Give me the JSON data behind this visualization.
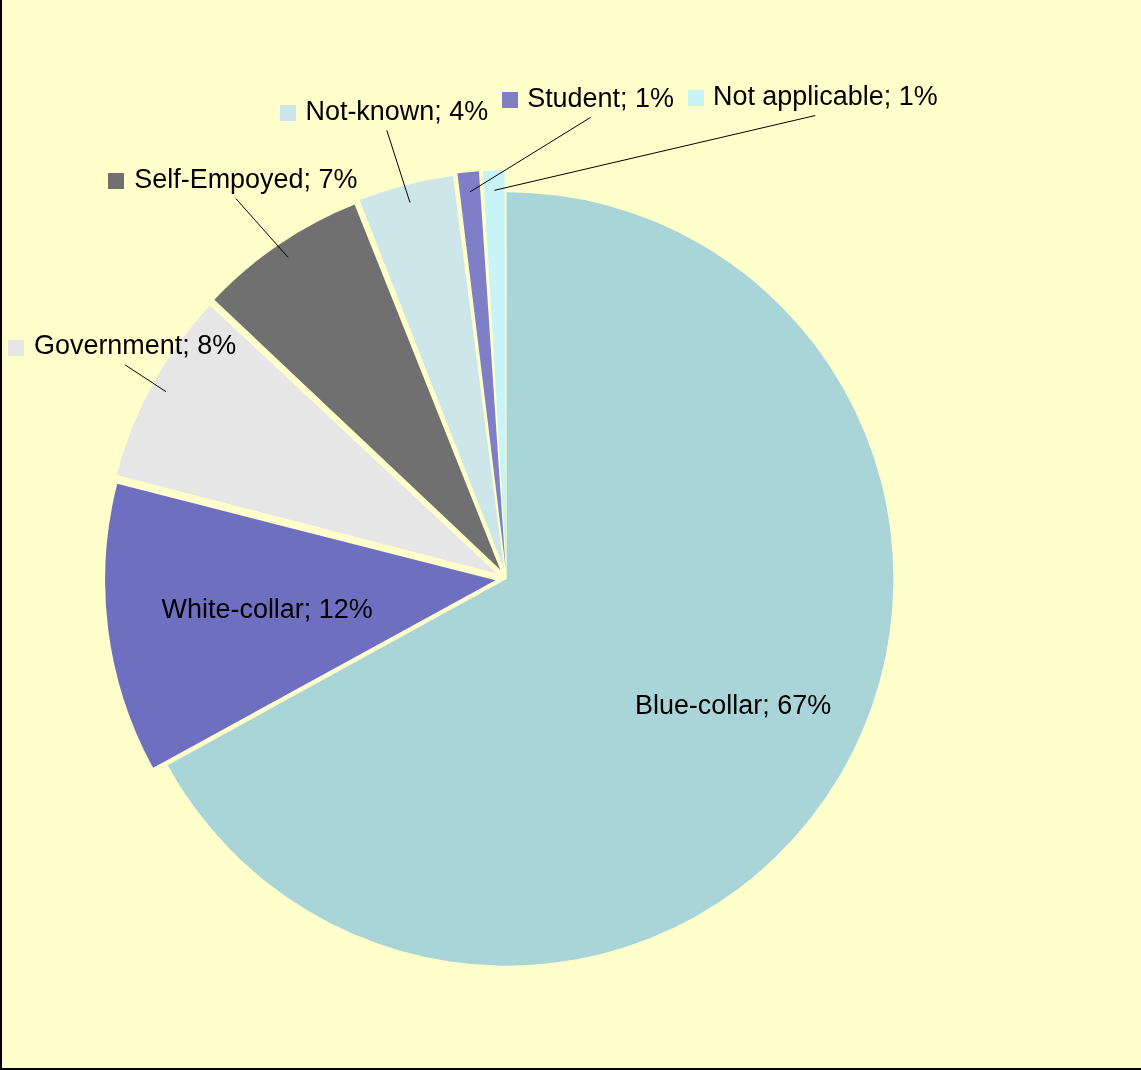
{
  "chart_data": {
    "type": "pie",
    "categories": [
      "Blue-collar",
      "White-collar",
      "Government",
      "Self-Empoyed",
      "Not-known",
      "Student",
      "Not applicable"
    ],
    "values": [
      67,
      12,
      8,
      7,
      4,
      1,
      1
    ],
    "value_labels": [
      "67%",
      "12%",
      "8%",
      "7%",
      "4%",
      "1%",
      "1%"
    ],
    "colors": [
      "#a9d5d9",
      "#6f6fc2",
      "#e6e6e6",
      "#707070",
      "#cce6ea",
      "#7f7fc8",
      "#c8f4f8"
    ],
    "legend": "top"
  }
}
